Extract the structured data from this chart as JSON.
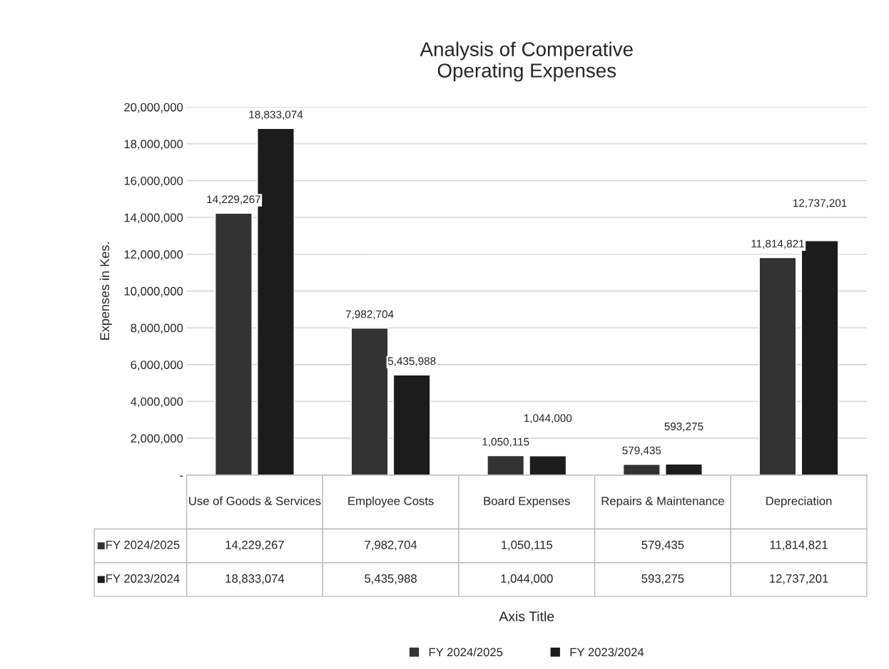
{
  "chart_data": {
    "type": "bar",
    "title": "Analysis of Comperative\nOperating Expenses",
    "annotations": [
      "Axis Title"
    ],
    "ylabel": "Expenses in Kes.",
    "categories": [
      "Use of Goods & Services",
      "Employee Costs",
      "Board Expenses",
      "Repairs & Maintenance",
      "Depreciation"
    ],
    "series": [
      {
        "name": "FY 2024/2025",
        "color": "#333333",
        "values": [
          14229267,
          7982704,
          1050115,
          579435,
          11814821
        ],
        "value_labels": [
          "14,229,267",
          "7,982,704",
          "1,050,115",
          "579,435",
          "11,814,821"
        ]
      },
      {
        "name": "FY 2023/2024",
        "color": "#1c1c1c",
        "values": [
          18833074,
          5435988,
          1044000,
          593275,
          12737201
        ],
        "value_labels": [
          "18,833,074",
          "5,435,988",
          "1,044,000",
          "593,275",
          "12,737,201"
        ]
      }
    ],
    "ylim": [
      0,
      20000000
    ],
    "yticks": [
      {
        "value": 0,
        "label": "-"
      },
      {
        "value": 2000000,
        "label": "2,000,000"
      },
      {
        "value": 4000000,
        "label": "4,000,000"
      },
      {
        "value": 6000000,
        "label": "6,000,000"
      },
      {
        "value": 8000000,
        "label": "8,000,000"
      },
      {
        "value": 10000000,
        "label": "10,000,000"
      },
      {
        "value": 12000000,
        "label": "12,000,000"
      },
      {
        "value": 14000000,
        "label": "14,000,000"
      },
      {
        "value": 16000000,
        "label": "16,000,000"
      },
      {
        "value": 18000000,
        "label": "18,000,000"
      },
      {
        "value": 20000000,
        "label": "20,000,000"
      }
    ],
    "grid": "y",
    "legend": "bottom"
  }
}
